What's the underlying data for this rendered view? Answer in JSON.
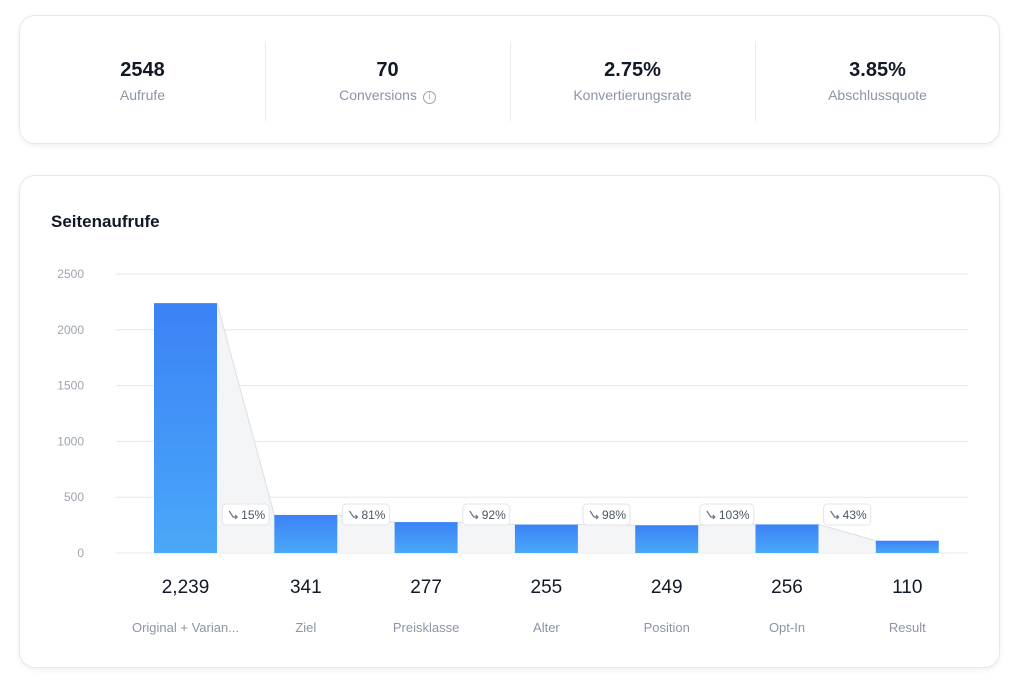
{
  "stats": [
    {
      "value": "2548",
      "label": "Aufrufe"
    },
    {
      "value": "70",
      "label": "Conversions",
      "info_icon": "info-icon"
    },
    {
      "value": "2.75%",
      "label": "Konvertierungsrate"
    },
    {
      "value": "3.85%",
      "label": "Abschlussquote"
    }
  ],
  "chart_title": "Seitenaufrufe",
  "colors": {
    "bar_top": "#3b82f6",
    "bar_bottom": "#4aa8f8",
    "grid": "#e5e7eb",
    "axis_text": "#9ca3af",
    "value_text": "#111827",
    "category_text": "#8b95a5"
  },
  "chart_data": {
    "type": "bar",
    "categories": [
      "Original + Varian...",
      "Ziel",
      "Preisklasse",
      "Alter",
      "Position",
      "Opt-In",
      "Result"
    ],
    "values": [
      2239,
      341,
      277,
      255,
      249,
      256,
      110
    ],
    "value_labels": [
      "2,239",
      "341",
      "277",
      "255",
      "249",
      "256",
      "110"
    ],
    "drop_rates": [
      "15%",
      "81%",
      "92%",
      "98%",
      "103%",
      "43%"
    ],
    "drop_icon": "arrow-down-right-icon",
    "yticks": [
      0,
      500,
      1000,
      1500,
      2000,
      2500
    ],
    "ylim": [
      0,
      2500
    ],
    "grid": true
  }
}
